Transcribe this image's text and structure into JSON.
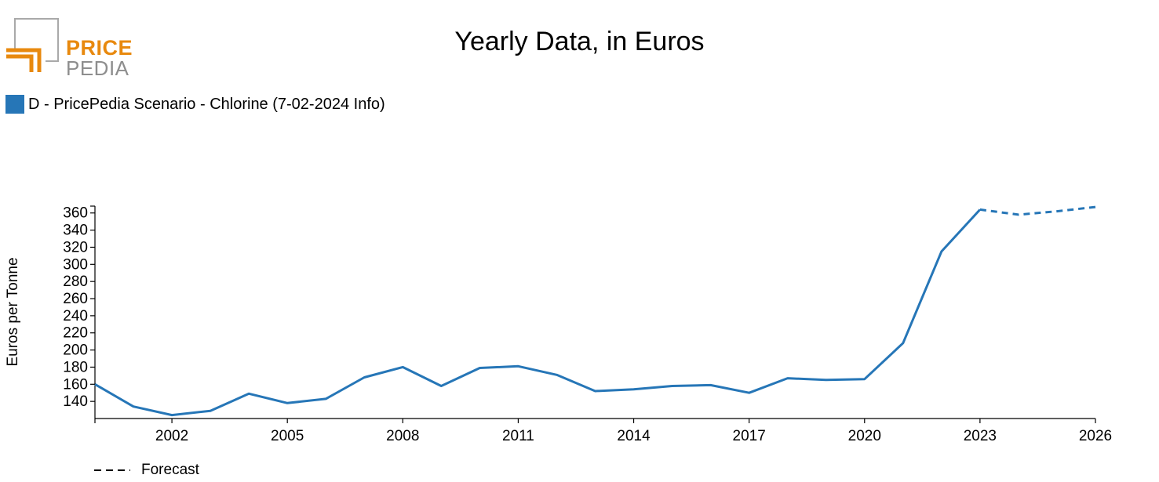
{
  "logo": {
    "word1": "PRICE",
    "word2": "PEDIA"
  },
  "colors": {
    "series": "#2676b7",
    "logo_orange": "#e8890e",
    "logo_gray": "#8e8e8e",
    "axis": "#000000"
  },
  "chart_data": {
    "type": "line",
    "title": "Yearly Data, in Euros",
    "ylabel": "Euros per Tonne",
    "xlabel": "",
    "xlim": [
      2000,
      2026
    ],
    "ylim": [
      120,
      368
    ],
    "x_ticks": [
      2002,
      2005,
      2008,
      2011,
      2014,
      2017,
      2020,
      2023,
      2026
    ],
    "y_ticks": [
      140,
      160,
      180,
      200,
      220,
      240,
      260,
      280,
      300,
      320,
      340,
      360
    ],
    "legend_position": "top-left",
    "series": [
      {
        "name": "D - PricePedia Scenario - Chlorine (7-02-2024 Info)",
        "color": "#2676b7",
        "points": [
          {
            "x": 2000,
            "y": 160
          },
          {
            "x": 2001,
            "y": 134
          },
          {
            "x": 2002,
            "y": 124
          },
          {
            "x": 2003,
            "y": 129
          },
          {
            "x": 2004,
            "y": 149
          },
          {
            "x": 2005,
            "y": 138
          },
          {
            "x": 2006,
            "y": 143
          },
          {
            "x": 2007,
            "y": 168
          },
          {
            "x": 2008,
            "y": 180
          },
          {
            "x": 2009,
            "y": 158
          },
          {
            "x": 2010,
            "y": 179
          },
          {
            "x": 2011,
            "y": 181
          },
          {
            "x": 2012,
            "y": 171
          },
          {
            "x": 2013,
            "y": 152
          },
          {
            "x": 2014,
            "y": 154
          },
          {
            "x": 2015,
            "y": 158
          },
          {
            "x": 2016,
            "y": 159
          },
          {
            "x": 2017,
            "y": 150
          },
          {
            "x": 2018,
            "y": 167
          },
          {
            "x": 2019,
            "y": 165
          },
          {
            "x": 2020,
            "y": 166
          },
          {
            "x": 2021,
            "y": 208
          },
          {
            "x": 2022,
            "y": 315
          },
          {
            "x": 2023,
            "y": 364
          }
        ],
        "forecast_points": [
          {
            "x": 2023,
            "y": 364
          },
          {
            "x": 2024,
            "y": 358
          },
          {
            "x": 2025,
            "y": 362
          },
          {
            "x": 2026,
            "y": 367
          }
        ]
      }
    ],
    "forecast_legend": "Forecast"
  }
}
